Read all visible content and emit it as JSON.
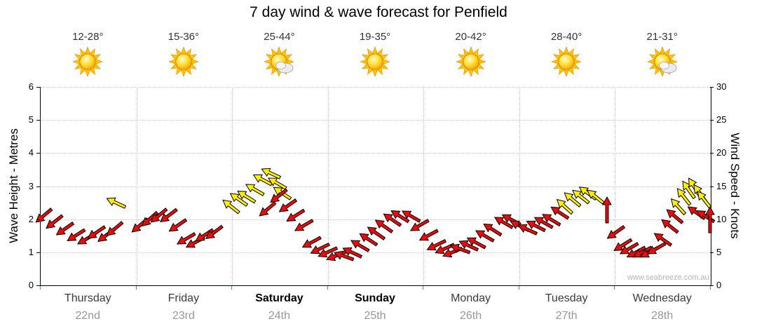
{
  "title": "7 day wind & wave forecast for Penfield",
  "watermark": "www.seabreeze.com.au",
  "axes": {
    "left_label": "Wave Height - Metres",
    "right_label": "Wind Speed - Knots",
    "left_ticks": [
      0,
      1,
      2,
      3,
      4,
      5,
      6
    ],
    "right_ticks": [
      0,
      5,
      10,
      15,
      20,
      25,
      30
    ]
  },
  "days": [
    {
      "name": "Thursday",
      "date": "22nd",
      "temp": "12-28°",
      "icon": "sunny",
      "bold": false
    },
    {
      "name": "Friday",
      "date": "23rd",
      "temp": "15-36°",
      "icon": "sunny",
      "bold": false
    },
    {
      "name": "Saturday",
      "date": "24th",
      "temp": "25-44°",
      "icon": "partly-cloudy",
      "bold": true
    },
    {
      "name": "Sunday",
      "date": "25th",
      "temp": "19-35°",
      "icon": "sunny",
      "bold": true
    },
    {
      "name": "Monday",
      "date": "26th",
      "temp": "20-42°",
      "icon": "sunny",
      "bold": false
    },
    {
      "name": "Tuesday",
      "date": "27th",
      "temp": "28-40°",
      "icon": "sunny",
      "bold": false
    },
    {
      "name": "Wednesday",
      "date": "28th",
      "temp": "21-31°",
      "icon": "partly-cloudy",
      "bold": false
    }
  ],
  "chart_data": {
    "type": "wind-arrows",
    "title": "7 day wind & wave forecast for Penfield",
    "y_left": {
      "label": "Wave Height - Metres",
      "range": [
        0,
        6
      ]
    },
    "y_right": {
      "label": "Wind Speed - Knots",
      "range": [
        0,
        30
      ]
    },
    "x_categories": [
      "Thursday 22nd",
      "Friday 23rd",
      "Saturday 24th",
      "Sunday 25th",
      "Monday 26th",
      "Tuesday 27th",
      "Wednesday 28th"
    ],
    "colors": {
      "r": "#ea0b0b",
      "y": "#ffee00"
    },
    "arrow_format": "[x_fraction_of_week, wind_speed_knots, rotation_deg, color_key]",
    "arrows": [
      [
        0.004,
        10.5,
        140,
        "r"
      ],
      [
        0.02,
        9.5,
        142,
        "r"
      ],
      [
        0.036,
        8.5,
        145,
        "r"
      ],
      [
        0.052,
        7.5,
        148,
        "r"
      ],
      [
        0.068,
        7,
        150,
        "r"
      ],
      [
        0.083,
        8,
        146,
        "r"
      ],
      [
        0.097,
        7.5,
        143,
        "r"
      ],
      [
        0.11,
        8.5,
        140,
        "r"
      ],
      [
        0.112,
        12.5,
        205,
        "y"
      ],
      [
        0.148,
        9,
        140,
        "r"
      ],
      [
        0.162,
        10,
        138,
        "r"
      ],
      [
        0.176,
        10.5,
        140,
        "r"
      ],
      [
        0.19,
        10.5,
        143,
        "r"
      ],
      [
        0.204,
        9,
        146,
        "r"
      ],
      [
        0.217,
        7,
        150,
        "r"
      ],
      [
        0.23,
        6.5,
        152,
        "r"
      ],
      [
        0.244,
        7.5,
        147,
        "r"
      ],
      [
        0.258,
        8,
        143,
        "r"
      ],
      [
        0.283,
        12,
        218,
        "y"
      ],
      [
        0.295,
        13,
        215,
        "y"
      ],
      [
        0.307,
        13.5,
        212,
        "y"
      ],
      [
        0.319,
        14.5,
        210,
        "y"
      ],
      [
        0.331,
        16,
        208,
        "y"
      ],
      [
        0.343,
        17,
        205,
        "y"
      ],
      [
        0.352,
        15.5,
        210,
        "y"
      ],
      [
        0.36,
        14,
        214,
        "y"
      ],
      [
        0.338,
        11.5,
        140,
        "r"
      ],
      [
        0.355,
        13.5,
        142,
        "r"
      ],
      [
        0.368,
        12,
        145,
        "r"
      ],
      [
        0.38,
        10.5,
        148,
        "r"
      ],
      [
        0.392,
        9,
        150,
        "r"
      ],
      [
        0.404,
        6.5,
        152,
        "r"
      ],
      [
        0.416,
        5.5,
        154,
        "r"
      ],
      [
        0.428,
        5,
        156,
        "r"
      ],
      [
        0.44,
        4.5,
        158,
        "r"
      ],
      [
        0.452,
        4.5,
        200,
        "r"
      ],
      [
        0.464,
        5,
        205,
        "r"
      ],
      [
        0.476,
        6,
        210,
        "r"
      ],
      [
        0.488,
        7,
        213,
        "r"
      ],
      [
        0.5,
        8,
        215,
        "r"
      ],
      [
        0.512,
        9,
        215,
        "r"
      ],
      [
        0.524,
        10,
        214,
        "r"
      ],
      [
        0.536,
        10.5,
        212,
        "r"
      ],
      [
        0.552,
        10.5,
        210,
        "r"
      ],
      [
        0.565,
        9,
        150,
        "r"
      ],
      [
        0.578,
        7.5,
        152,
        "r"
      ],
      [
        0.59,
        6,
        154,
        "r"
      ],
      [
        0.602,
        5.5,
        156,
        "r"
      ],
      [
        0.614,
        5,
        158,
        "r"
      ],
      [
        0.626,
        5.5,
        200,
        "r"
      ],
      [
        0.638,
        6,
        205,
        "r"
      ],
      [
        0.65,
        6.5,
        208,
        "r"
      ],
      [
        0.662,
        7.5,
        210,
        "r"
      ],
      [
        0.674,
        8.5,
        212,
        "r"
      ],
      [
        0.69,
        9.5,
        210,
        "r"
      ],
      [
        0.702,
        10,
        208,
        "r"
      ],
      [
        0.714,
        9,
        206,
        "r"
      ],
      [
        0.726,
        8.5,
        205,
        "r"
      ],
      [
        0.738,
        9,
        207,
        "r"
      ],
      [
        0.75,
        9.5,
        209,
        "r"
      ],
      [
        0.762,
        10,
        211,
        "r"
      ],
      [
        0.774,
        11,
        213,
        "r"
      ],
      [
        0.781,
        12,
        222,
        "y"
      ],
      [
        0.793,
        13,
        220,
        "y"
      ],
      [
        0.805,
        13.5,
        218,
        "y"
      ],
      [
        0.816,
        14,
        216,
        "y"
      ],
      [
        0.827,
        13.5,
        219,
        "y"
      ],
      [
        0.845,
        11.5,
        270,
        "r"
      ],
      [
        0.858,
        8,
        145,
        "r"
      ],
      [
        0.868,
        6,
        148,
        "r"
      ],
      [
        0.878,
        5.5,
        150,
        "r"
      ],
      [
        0.888,
        5,
        152,
        "r"
      ],
      [
        0.898,
        5,
        152,
        "r"
      ],
      [
        0.908,
        5,
        152,
        "r"
      ],
      [
        0.918,
        5.5,
        150,
        "r"
      ],
      [
        0.928,
        7,
        215,
        "r"
      ],
      [
        0.938,
        9,
        218,
        "r"
      ],
      [
        0.946,
        10.5,
        220,
        "r"
      ],
      [
        0.951,
        12,
        228,
        "y"
      ],
      [
        0.959,
        13.5,
        232,
        "y"
      ],
      [
        0.967,
        14.5,
        235,
        "y"
      ],
      [
        0.975,
        15,
        238,
        "y"
      ],
      [
        0.983,
        14,
        235,
        "y"
      ],
      [
        0.99,
        13,
        232,
        "y"
      ],
      [
        0.978,
        11,
        215,
        "r"
      ],
      [
        0.992,
        10.5,
        212,
        "r"
      ],
      [
        0.999,
        10,
        270,
        "r"
      ]
    ]
  }
}
